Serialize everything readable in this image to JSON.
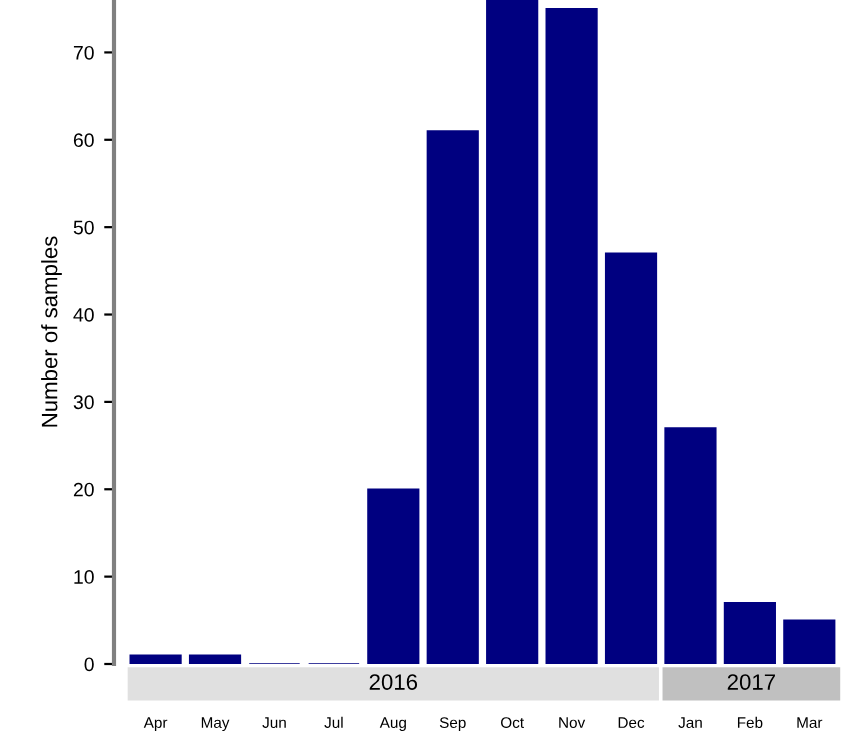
{
  "chart_data": {
    "type": "bar",
    "ylabel": "Number of samples",
    "categories": [
      "Apr",
      "May",
      "Jun",
      "Jul",
      "Aug",
      "Sep",
      "Oct",
      "Nov",
      "Dec",
      "Jan",
      "Feb",
      "Mar"
    ],
    "values": [
      1,
      1,
      0,
      0,
      20,
      61,
      76,
      75,
      47,
      27,
      7,
      5
    ],
    "color": "#000080",
    "ylim": [
      0,
      76
    ],
    "yticks": [
      0,
      10,
      20,
      30,
      40,
      50,
      60,
      70
    ],
    "grid": false,
    "annotations": [
      "2016",
      "2017"
    ]
  }
}
